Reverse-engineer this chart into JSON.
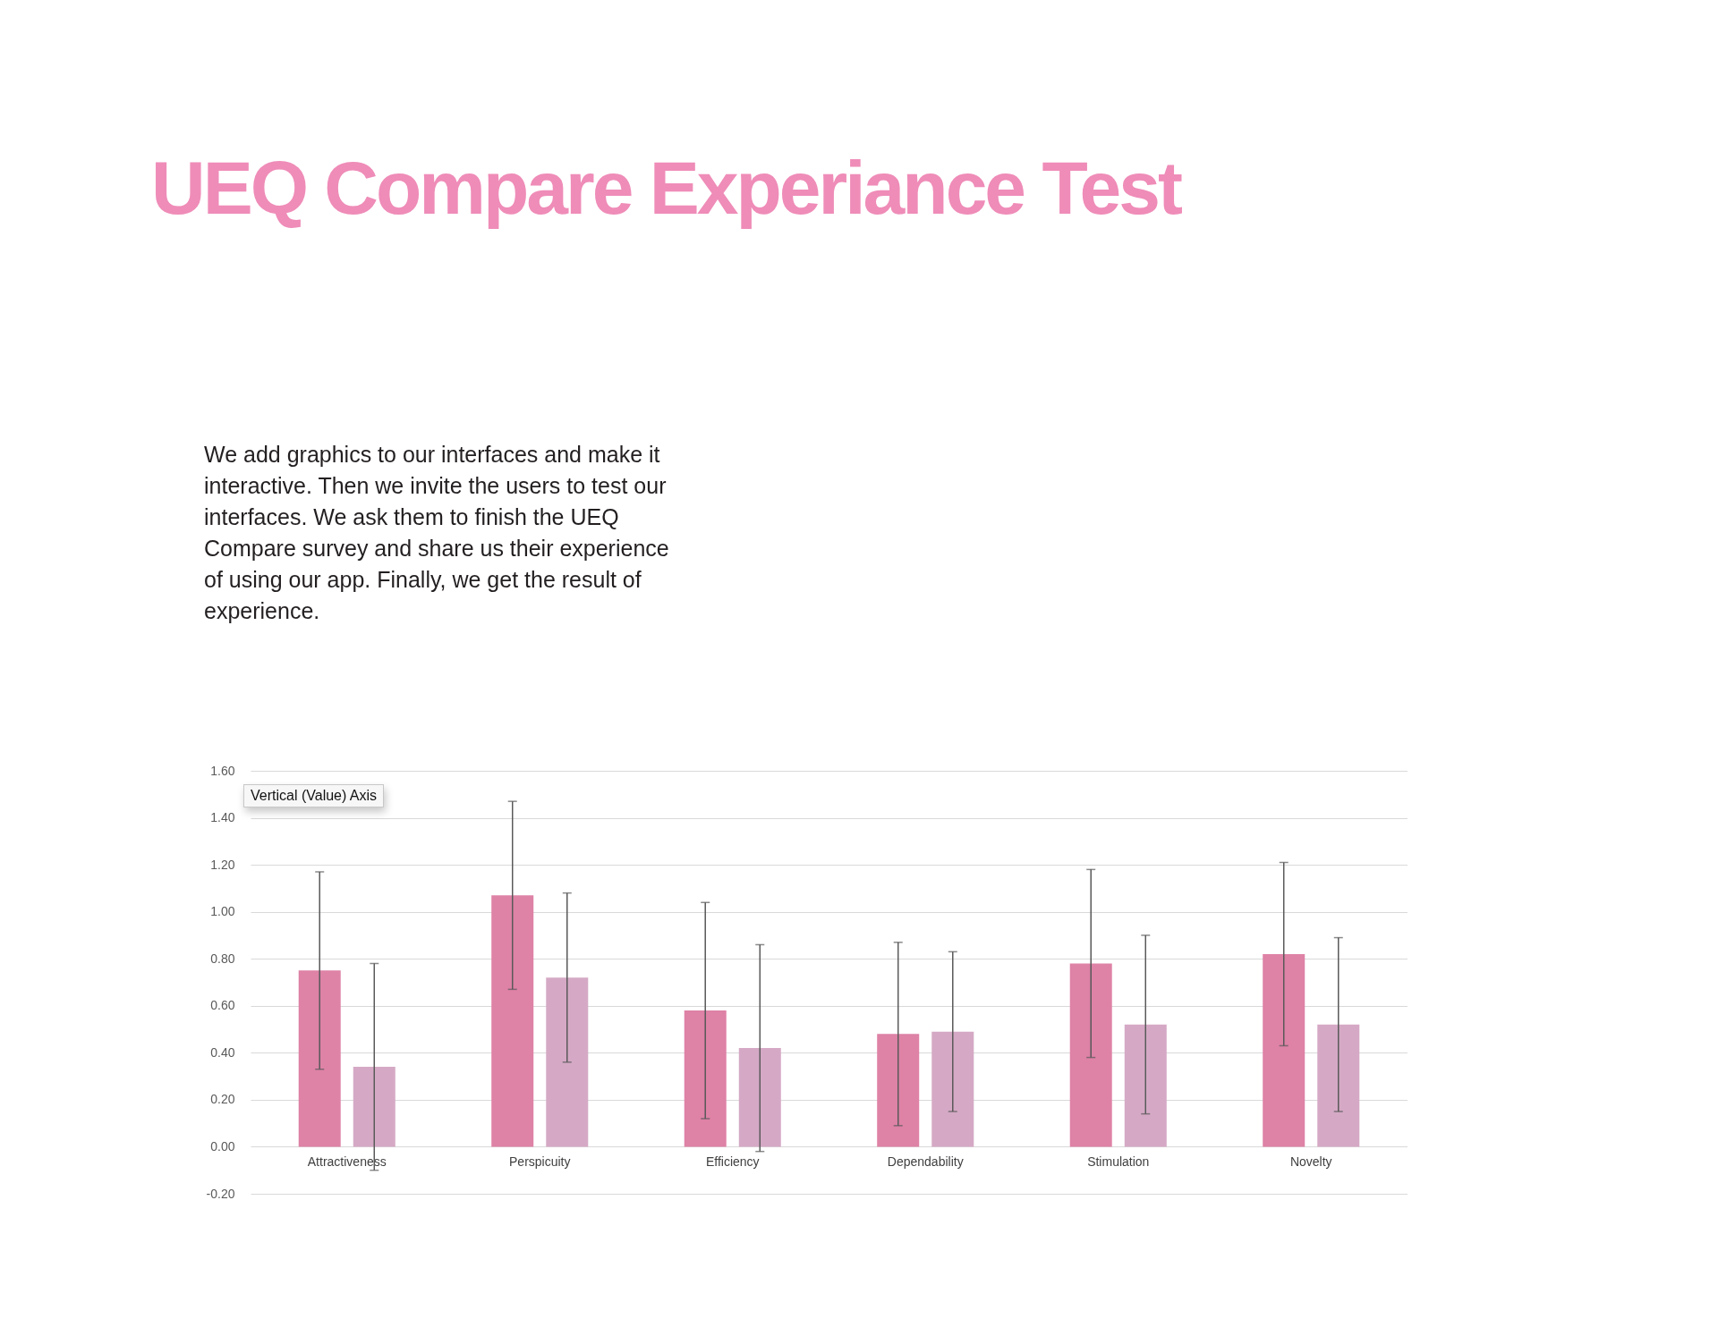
{
  "chart_data": {
    "type": "bar",
    "title": "UEQ Compare Experiance Test",
    "subtitle": "We add graphics to our interfaces and make it interactive. Then we invite the users to test our interfaces. We ask them to finish the UEQ Compare survey and share us their experience of using our app. Finally, we get the result of experience.",
    "categories": [
      "Attractiveness",
      "Perspicuity",
      "Efficiency",
      "Dependability",
      "Stimulation",
      "Novelty"
    ],
    "series": [
      {
        "color": "#de82a6",
        "values": [
          0.75,
          1.07,
          0.58,
          0.48,
          0.78,
          0.82
        ],
        "errors": [
          0.42,
          0.4,
          0.46,
          0.39,
          0.4,
          0.39
        ]
      },
      {
        "color": "#d5a9c5",
        "values": [
          0.34,
          0.72,
          0.42,
          0.49,
          0.52,
          0.52
        ],
        "errors": [
          0.44,
          0.36,
          0.44,
          0.34,
          0.38,
          0.37
        ]
      }
    ],
    "ylim": [
      -0.2,
      1.6
    ],
    "yticks": [
      {
        "value": -0.2,
        "label": "-0.20"
      },
      {
        "value": 0,
        "label": "0.00"
      },
      {
        "value": 0.2,
        "label": "0.20"
      },
      {
        "value": 0.4,
        "label": "0.40"
      },
      {
        "value": 0.6,
        "label": "0.60"
      },
      {
        "value": 0.8,
        "label": "0.80"
      },
      {
        "value": 1,
        "label": "1.00"
      },
      {
        "value": 1.2,
        "label": "1.20"
      },
      {
        "value": 1.4,
        "label": "1.40"
      },
      {
        "value": 1.6,
        "label": "1.60"
      }
    ],
    "grid": "y",
    "legend": false,
    "annotations": [
      "Vertical (Value) Axis"
    ]
  }
}
